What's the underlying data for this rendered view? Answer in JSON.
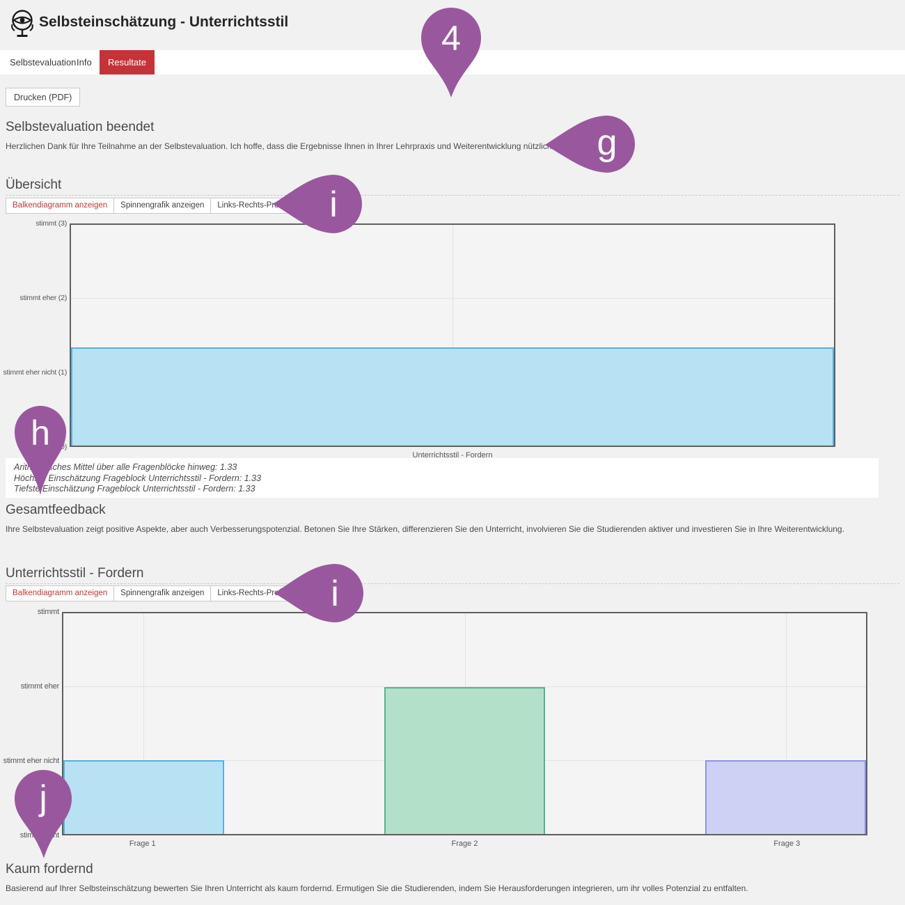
{
  "header": {
    "title": "Selbsteinschätzung - Unterrichtsstil",
    "icon": "eye-mirror-icon"
  },
  "nav": {
    "tabs": [
      {
        "label": "Selbstevaluation",
        "active": false
      },
      {
        "label": "Info",
        "active": false
      },
      {
        "label": "Resultate",
        "active": true
      }
    ],
    "active_color": "#c53338"
  },
  "toolbar": {
    "print_label": "Drucken (PDF)"
  },
  "completion": {
    "heading": "Selbstevaluation beendet",
    "text": "Herzlichen Dank für Ihre Teilnahme an der Selbstevaluation. Ich hoffe, dass die Ergebnisse Ihnen in Ihrer Lehrpraxis und Weiterentwicklung nützlich sind."
  },
  "overview_section": {
    "heading": "Übersicht",
    "buttons": [
      "Balkendiagramm anzeigen",
      "Spinnengrafik anzeigen",
      "Links-Rechts-Profil anzeigen"
    ],
    "active_button_color": "#bf3a33",
    "stats_lines": [
      "Arithmetisches Mittel über alle Fragenblöcke hinweg: 1.33",
      "Höchste Einschätzung Frageblock Unterrichtsstil - Fordern: 1.33",
      "Tiefste Einschätzung Frageblock Unterrichtsstil - Fordern: 1.33"
    ]
  },
  "feedback_section": {
    "heading": "Gesamtfeedback",
    "text": "Ihre Selbstevaluation zeigt positive Aspekte, aber auch Verbesserungspotenzial. Betonen Sie Ihre Stärken, differenzieren Sie den Unterricht, involvieren Sie die Studierenden aktiver und investieren Sie in Ihre Weiterentwicklung."
  },
  "block_section": {
    "heading": "Unterrichtsstil - Fordern",
    "buttons": [
      "Balkendiagramm anzeigen",
      "Spinnengrafik anzeigen",
      "Links-Rechts-Profil anzeigen"
    ]
  },
  "result_section": {
    "heading": "Kaum fordernd",
    "text": "Basierend auf Ihrer Selbsteinschätzung bewerten Sie Ihren Unterricht als kaum fordernd. Ermutigen Sie die Studierenden, indem Sie Herausforderungen integrieren, um ihr volles Potenzial zu entfalten."
  },
  "annotations": {
    "color": "#99589e",
    "pins": [
      {
        "label": "4",
        "shape": "map-pin-down"
      },
      {
        "label": "g",
        "shape": "pin-left"
      },
      {
        "label": "i",
        "shape": "pin-left"
      },
      {
        "label": "h",
        "shape": "map-pin-down"
      },
      {
        "label": "i",
        "shape": "pin-left"
      },
      {
        "label": "j",
        "shape": "map-pin-down"
      }
    ]
  },
  "chart_data": [
    {
      "type": "bar",
      "title": "Übersicht",
      "ymax": 3,
      "ylim": [
        0,
        3
      ],
      "grid": true,
      "ytick_labels_top_to_bottom": [
        "stimmt (3)",
        "stimmt eher (2)",
        "stimmt eher nicht (1)",
        "stimmt nicht (0)"
      ],
      "categories": [
        "Unterrichtsstil - Fordern"
      ],
      "values": [
        1.33
      ],
      "bars": [
        {
          "category": "Unterrichtsstil - Fordern",
          "value": 1.33,
          "fill": "#b7e2f4",
          "border": "#58b0dd"
        }
      ]
    },
    {
      "type": "bar",
      "title": "Unterrichtsstil - Fordern",
      "ymax": 3,
      "ylim": [
        0,
        3
      ],
      "grid": true,
      "ytick_labels_top_to_bottom": [
        "stimmt",
        "stimmt eher",
        "stimmt eher nicht",
        "stimmt nicht"
      ],
      "categories": [
        "Frage 1",
        "Frage 2",
        "Frage 3"
      ],
      "values": [
        1,
        2,
        1
      ],
      "bars": [
        {
          "category": "Frage 1",
          "value": 1,
          "fill": "#b7e2f4",
          "border": "#58b0dd"
        },
        {
          "category": "Frage 2",
          "value": 2,
          "fill": "#b2e0c8",
          "border": "#4cb98c"
        },
        {
          "category": "Frage 3",
          "value": 1,
          "fill": "#cdd1f3",
          "border": "#8c92e3"
        }
      ]
    }
  ]
}
